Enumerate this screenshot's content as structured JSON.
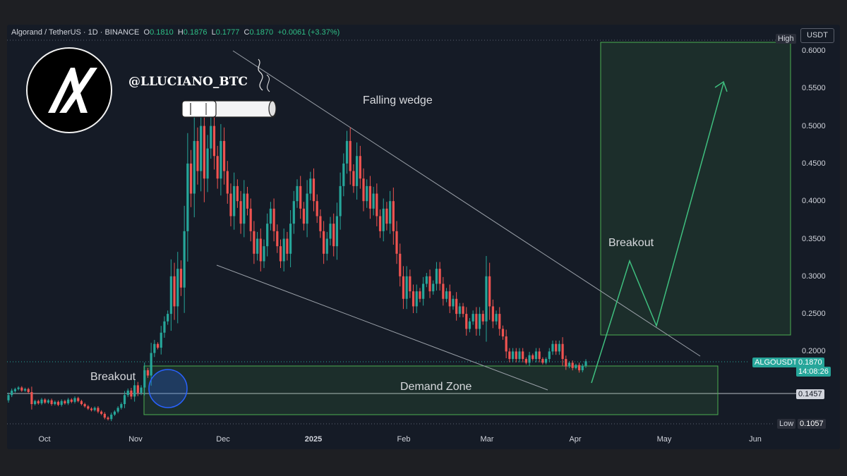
{
  "legend": {
    "symbol": "Algorand / TetherUS · 1D · BINANCE",
    "o_label": "O",
    "o_value": "0.1810",
    "h_label": "H",
    "h_value": "0.1876",
    "l_label": "L",
    "l_value": "0.1777",
    "c_label": "C",
    "c_value": "0.1870",
    "change": "+0.0061 (+3.37%)"
  },
  "currency": "USDT",
  "handle": "@LLUCIANO_BTC",
  "tags": {
    "high": "High",
    "low": "Low",
    "low_value": "0.1057",
    "symbol": "ALGOUSDT",
    "last_price": "0.1870",
    "countdown": "14:08:26",
    "level": "0.1457"
  },
  "colors": {
    "up": "#26a69a",
    "down": "#ef5350",
    "panel": "#151b26",
    "zone": "#4caf50",
    "arrow": "#3fbf7f",
    "wedge": "#9aa0a8",
    "circle": "#2962ff"
  },
  "chart_data": {
    "type": "candlestick",
    "y_axis": {
      "min": 0.1,
      "max": 0.6,
      "tick_labels": [
        "0.6000",
        "0.5500",
        "0.5000",
        "0.4500",
        "0.4000",
        "0.3500",
        "0.3000",
        "0.2500",
        "0.2000"
      ]
    },
    "x_axis": {
      "tick_labels": [
        "Oct",
        "Nov",
        "Dec",
        "2025",
        "Feb",
        "Mar",
        "Apr",
        "May",
        "Jun"
      ]
    },
    "annotations": {
      "falling_wedge": "Falling wedge",
      "breakout_right": "Breakout",
      "breakout_left": "Breakout",
      "demand_zone": "Demand Zone"
    },
    "demand_zone": {
      "low": 0.125,
      "high": 0.188
    },
    "target_box": {
      "low": 0.225,
      "high": 0.61
    },
    "reference_level": 0.1457,
    "price_path": [
      [
        0.135,
        0.142
      ],
      [
        0.142,
        0.148
      ],
      [
        0.147,
        0.15
      ],
      [
        0.15,
        0.152
      ],
      [
        0.152,
        0.148
      ],
      [
        0.148,
        0.15
      ],
      [
        0.15,
        0.146
      ],
      [
        0.146,
        0.13
      ],
      [
        0.13,
        0.134
      ],
      [
        0.134,
        0.131
      ],
      [
        0.131,
        0.136
      ],
      [
        0.136,
        0.132
      ],
      [
        0.132,
        0.135
      ],
      [
        0.135,
        0.13
      ],
      [
        0.13,
        0.133
      ],
      [
        0.133,
        0.129
      ],
      [
        0.129,
        0.134
      ],
      [
        0.134,
        0.131
      ],
      [
        0.131,
        0.136
      ],
      [
        0.136,
        0.133
      ],
      [
        0.133,
        0.138
      ],
      [
        0.138,
        0.134
      ],
      [
        0.134,
        0.13
      ],
      [
        0.13,
        0.127
      ],
      [
        0.127,
        0.124
      ],
      [
        0.124,
        0.122
      ],
      [
        0.122,
        0.125
      ],
      [
        0.125,
        0.12
      ],
      [
        0.12,
        0.117
      ],
      [
        0.117,
        0.112
      ],
      [
        0.112,
        0.11
      ],
      [
        0.11,
        0.116
      ],
      [
        0.116,
        0.12
      ],
      [
        0.12,
        0.125
      ],
      [
        0.125,
        0.13
      ],
      [
        0.13,
        0.142
      ],
      [
        0.142,
        0.148
      ],
      [
        0.148,
        0.14
      ],
      [
        0.14,
        0.155
      ],
      [
        0.155,
        0.145
      ],
      [
        0.145,
        0.152
      ],
      [
        0.152,
        0.175
      ],
      [
        0.175,
        0.168
      ],
      [
        0.168,
        0.198
      ],
      [
        0.198,
        0.21
      ],
      [
        0.21,
        0.205
      ],
      [
        0.205,
        0.225
      ],
      [
        0.225,
        0.24
      ],
      [
        0.24,
        0.25
      ],
      [
        0.25,
        0.3
      ],
      [
        0.3,
        0.26
      ],
      [
        0.26,
        0.31
      ],
      [
        0.31,
        0.285
      ],
      [
        0.285,
        0.36
      ],
      [
        0.36,
        0.45
      ],
      [
        0.45,
        0.41
      ],
      [
        0.41,
        0.48
      ],
      [
        0.48,
        0.44
      ],
      [
        0.44,
        0.5
      ],
      [
        0.5,
        0.43
      ],
      [
        0.43,
        0.47
      ],
      [
        0.47,
        0.5
      ],
      [
        0.5,
        0.46
      ],
      [
        0.46,
        0.43
      ],
      [
        0.43,
        0.48
      ],
      [
        0.48,
        0.44
      ],
      [
        0.44,
        0.41
      ],
      [
        0.41,
        0.38
      ],
      [
        0.38,
        0.42
      ],
      [
        0.42,
        0.4
      ],
      [
        0.4,
        0.37
      ],
      [
        0.37,
        0.41
      ],
      [
        0.41,
        0.39
      ],
      [
        0.39,
        0.36
      ],
      [
        0.36,
        0.33
      ],
      [
        0.33,
        0.35
      ],
      [
        0.35,
        0.32
      ],
      [
        0.32,
        0.34
      ],
      [
        0.34,
        0.37
      ],
      [
        0.37,
        0.39
      ],
      [
        0.39,
        0.36
      ],
      [
        0.36,
        0.34
      ],
      [
        0.34,
        0.32
      ],
      [
        0.32,
        0.35
      ],
      [
        0.35,
        0.33
      ],
      [
        0.33,
        0.37
      ],
      [
        0.37,
        0.4
      ],
      [
        0.4,
        0.42
      ],
      [
        0.42,
        0.39
      ],
      [
        0.39,
        0.37
      ],
      [
        0.37,
        0.41
      ],
      [
        0.41,
        0.43
      ],
      [
        0.43,
        0.4
      ],
      [
        0.4,
        0.38
      ],
      [
        0.38,
        0.36
      ],
      [
        0.36,
        0.33
      ],
      [
        0.33,
        0.35
      ],
      [
        0.35,
        0.37
      ],
      [
        0.37,
        0.34
      ],
      [
        0.34,
        0.38
      ],
      [
        0.38,
        0.42
      ],
      [
        0.42,
        0.45
      ],
      [
        0.45,
        0.48
      ],
      [
        0.48,
        0.44
      ],
      [
        0.44,
        0.42
      ],
      [
        0.42,
        0.46
      ],
      [
        0.46,
        0.43
      ],
      [
        0.43,
        0.4
      ],
      [
        0.4,
        0.42
      ],
      [
        0.42,
        0.39
      ],
      [
        0.39,
        0.41
      ],
      [
        0.41,
        0.38
      ],
      [
        0.38,
        0.36
      ],
      [
        0.36,
        0.39
      ],
      [
        0.39,
        0.37
      ],
      [
        0.37,
        0.4
      ],
      [
        0.4,
        0.36
      ],
      [
        0.36,
        0.33
      ],
      [
        0.33,
        0.3
      ],
      [
        0.3,
        0.27
      ],
      [
        0.27,
        0.3
      ],
      [
        0.3,
        0.28
      ],
      [
        0.28,
        0.26
      ],
      [
        0.26,
        0.28
      ],
      [
        0.28,
        0.27
      ],
      [
        0.27,
        0.29
      ],
      [
        0.29,
        0.3
      ],
      [
        0.3,
        0.28
      ],
      [
        0.28,
        0.29
      ],
      [
        0.29,
        0.31
      ],
      [
        0.31,
        0.29
      ],
      [
        0.29,
        0.27
      ],
      [
        0.27,
        0.28
      ],
      [
        0.28,
        0.26
      ],
      [
        0.26,
        0.27
      ],
      [
        0.27,
        0.25
      ],
      [
        0.25,
        0.26
      ],
      [
        0.26,
        0.25
      ],
      [
        0.25,
        0.23
      ],
      [
        0.23,
        0.24
      ],
      [
        0.24,
        0.25
      ],
      [
        0.25,
        0.23
      ],
      [
        0.23,
        0.25
      ],
      [
        0.25,
        0.24
      ],
      [
        0.24,
        0.3
      ],
      [
        0.3,
        0.26
      ],
      [
        0.26,
        0.24
      ],
      [
        0.24,
        0.25
      ],
      [
        0.25,
        0.23
      ],
      [
        0.23,
        0.22
      ],
      [
        0.22,
        0.2
      ],
      [
        0.2,
        0.19
      ],
      [
        0.19,
        0.2
      ],
      [
        0.2,
        0.19
      ],
      [
        0.19,
        0.2
      ],
      [
        0.2,
        0.19
      ],
      [
        0.19,
        0.185
      ],
      [
        0.185,
        0.195
      ],
      [
        0.195,
        0.19
      ],
      [
        0.19,
        0.2
      ],
      [
        0.2,
        0.19
      ],
      [
        0.19,
        0.185
      ],
      [
        0.185,
        0.19
      ],
      [
        0.19,
        0.2
      ],
      [
        0.2,
        0.21
      ],
      [
        0.21,
        0.2
      ],
      [
        0.2,
        0.21
      ],
      [
        0.21,
        0.19
      ],
      [
        0.19,
        0.18
      ],
      [
        0.18,
        0.185
      ],
      [
        0.185,
        0.178
      ],
      [
        0.178,
        0.182
      ],
      [
        0.182,
        0.175
      ],
      [
        0.175,
        0.181
      ],
      [
        0.181,
        0.187
      ]
    ]
  }
}
